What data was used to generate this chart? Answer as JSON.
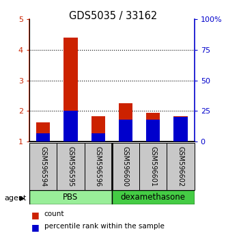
{
  "title": "GDS5035 / 33162",
  "samples": [
    "GSM596594",
    "GSM596595",
    "GSM596596",
    "GSM596600",
    "GSM596601",
    "GSM596602"
  ],
  "count_values": [
    1.63,
    4.4,
    1.82,
    2.25,
    1.95,
    1.82
  ],
  "percentile_right": [
    7,
    25,
    7,
    18,
    18,
    20
  ],
  "groups": [
    {
      "label": "PBS",
      "color": "#99EE99",
      "start": 0,
      "end": 3
    },
    {
      "label": "dexamethasone",
      "color": "#44CC44",
      "start": 3,
      "end": 6
    }
  ],
  "ylim_left": [
    1,
    5
  ],
  "ylim_right": [
    0,
    100
  ],
  "yticks_left": [
    1,
    2,
    3,
    4,
    5
  ],
  "ytick_labels_left": [
    "1",
    "2",
    "3",
    "4",
    "5"
  ],
  "yticks_right": [
    0,
    25,
    50,
    75,
    100
  ],
  "ytick_labels_right": [
    "0",
    "25",
    "50",
    "75",
    "100%"
  ],
  "bar_width": 0.5,
  "count_color": "#CC2200",
  "percentile_color": "#0000CC",
  "left_axis_color": "#CC2200",
  "right_axis_color": "#0000CC",
  "sample_box_color": "#C8C8C8",
  "bar_bottom": 1.0
}
